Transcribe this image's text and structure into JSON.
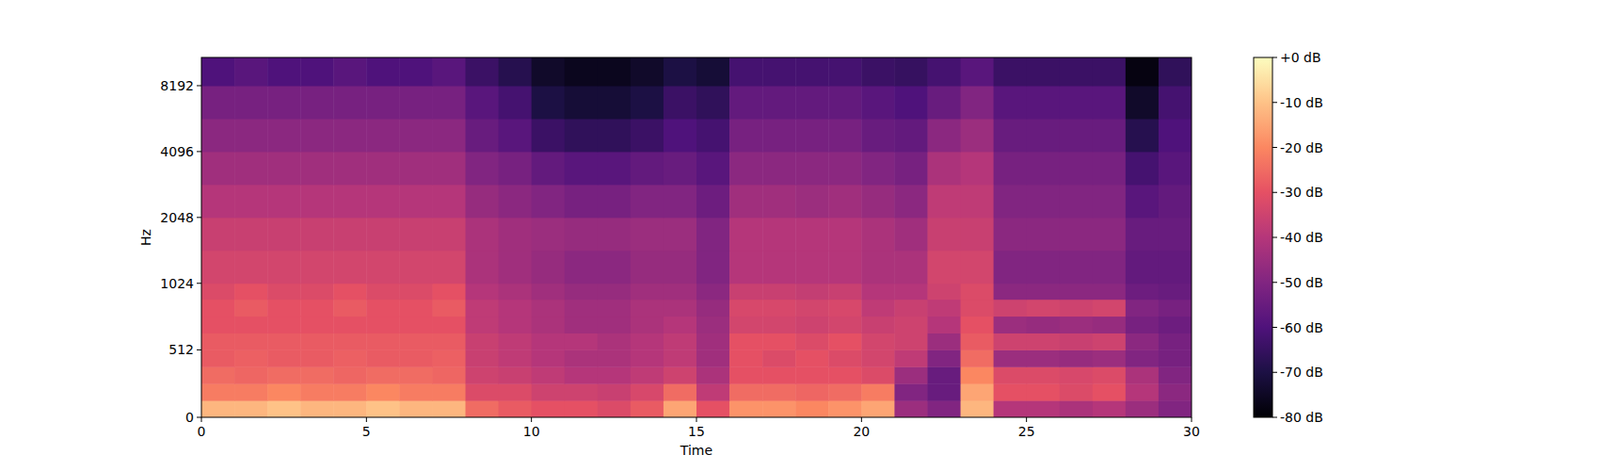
{
  "chart_data": {
    "type": "heatmap",
    "x_label": "Time",
    "y_label": "Hz",
    "xlim": [
      0,
      30
    ],
    "xticks": [
      0,
      5,
      10,
      15,
      20,
      25,
      30
    ],
    "ylim": [
      0,
      11025
    ],
    "yticks": [
      0,
      512,
      1024,
      2048,
      4096,
      8192
    ],
    "log": "y",
    "x_edges": [
      0,
      1,
      2,
      3,
      4,
      5,
      6,
      7,
      8,
      9,
      10,
      11,
      12,
      13,
      14,
      15,
      16,
      17,
      18,
      19,
      20,
      21,
      22,
      23,
      24,
      25,
      26,
      27,
      28,
      29,
      30
    ],
    "y_edges": [
      0,
      128,
      256,
      384,
      512,
      640,
      768,
      896,
      1024,
      1448,
      2048,
      2896,
      4096,
      5793,
      8192,
      11025
    ],
    "values": [
      [
        -12,
        -12,
        -10,
        -12,
        -12,
        -10,
        -12,
        -12,
        -25,
        -28,
        -30,
        -30,
        -32,
        -28,
        -15,
        -30,
        -18,
        -18,
        -20,
        -18,
        -15,
        -45,
        -50,
        -12,
        -40,
        -40,
        -42,
        -40,
        -45,
        -50
      ],
      [
        -22,
        -22,
        -20,
        -22,
        -22,
        -20,
        -22,
        -22,
        -32,
        -32,
        -35,
        -35,
        -36,
        -33,
        -25,
        -38,
        -25,
        -25,
        -26,
        -25,
        -22,
        -50,
        -55,
        -15,
        -30,
        -30,
        -32,
        -30,
        -40,
        -48
      ],
      [
        -25,
        -26,
        -25,
        -25,
        -26,
        -25,
        -25,
        -26,
        -35,
        -36,
        -38,
        -40,
        -40,
        -38,
        -35,
        -42,
        -30,
        -30,
        -30,
        -30,
        -32,
        -45,
        -55,
        -20,
        -32,
        -32,
        -33,
        -32,
        -42,
        -50
      ],
      [
        -28,
        -27,
        -28,
        -28,
        -27,
        -28,
        -28,
        -27,
        -36,
        -38,
        -40,
        -42,
        -42,
        -40,
        -38,
        -44,
        -30,
        -32,
        -30,
        -32,
        -34,
        -38,
        -50,
        -25,
        -45,
        -45,
        -46,
        -45,
        -50,
        -52
      ],
      [
        -28,
        -28,
        -28,
        -28,
        -28,
        -28,
        -28,
        -28,
        -36,
        -38,
        -40,
        -40,
        -42,
        -40,
        -38,
        -44,
        -30,
        -30,
        -32,
        -30,
        -34,
        -35,
        -45,
        -28,
        -35,
        -35,
        -36,
        -35,
        -48,
        -52
      ],
      [
        -30,
        -30,
        -30,
        -30,
        -30,
        -30,
        -30,
        -30,
        -38,
        -40,
        -42,
        -44,
        -44,
        -42,
        -40,
        -45,
        -34,
        -34,
        -35,
        -34,
        -36,
        -35,
        -40,
        -30,
        -45,
        -46,
        -45,
        -46,
        -52,
        -54
      ],
      [
        -30,
        -28,
        -30,
        -30,
        -28,
        -30,
        -30,
        -28,
        -38,
        -40,
        -42,
        -44,
        -44,
        -42,
        -42,
        -46,
        -33,
        -33,
        -34,
        -33,
        -38,
        -36,
        -38,
        -32,
        -35,
        -34,
        -35,
        -34,
        -50,
        -52
      ],
      [
        -32,
        -30,
        -32,
        -32,
        -30,
        -32,
        -32,
        -30,
        -40,
        -42,
        -44,
        -46,
        -46,
        -44,
        -44,
        -48,
        -36,
        -36,
        -37,
        -36,
        -40,
        -40,
        -35,
        -32,
        -48,
        -48,
        -48,
        -48,
        -54,
        -55
      ],
      [
        -34,
        -34,
        -34,
        -34,
        -34,
        -34,
        -34,
        -34,
        -42,
        -44,
        -46,
        -48,
        -48,
        -46,
        -46,
        -50,
        -40,
        -40,
        -40,
        -40,
        -42,
        -42,
        -34,
        -34,
        -50,
        -50,
        -50,
        -50,
        -56,
        -56
      ],
      [
        -36,
        -36,
        -36,
        -36,
        -36,
        -36,
        -36,
        -36,
        -42,
        -44,
        -45,
        -46,
        -46,
        -45,
        -45,
        -50,
        -40,
        -40,
        -40,
        -40,
        -42,
        -44,
        -36,
        -36,
        -48,
        -48,
        -48,
        -48,
        -55,
        -55
      ],
      [
        -40,
        -40,
        -40,
        -40,
        -40,
        -40,
        -40,
        -40,
        -46,
        -48,
        -50,
        -52,
        -52,
        -50,
        -50,
        -54,
        -44,
        -44,
        -45,
        -44,
        -46,
        -48,
        -38,
        -38,
        -50,
        -50,
        -50,
        -50,
        -58,
        -56
      ],
      [
        -44,
        -44,
        -44,
        -44,
        -44,
        -44,
        -44,
        -44,
        -50,
        -52,
        -56,
        -58,
        -58,
        -56,
        -55,
        -58,
        -48,
        -48,
        -48,
        -48,
        -50,
        -52,
        -42,
        -40,
        -52,
        -52,
        -52,
        -52,
        -62,
        -58
      ],
      [
        -48,
        -48,
        -48,
        -48,
        -48,
        -48,
        -48,
        -48,
        -55,
        -58,
        -64,
        -66,
        -66,
        -64,
        -60,
        -62,
        -52,
        -52,
        -52,
        -52,
        -55,
        -56,
        -48,
        -45,
        -55,
        -55,
        -55,
        -55,
        -68,
        -60
      ],
      [
        -52,
        -52,
        -52,
        -52,
        -52,
        -52,
        -52,
        -52,
        -58,
        -62,
        -70,
        -72,
        -72,
        -70,
        -64,
        -66,
        -56,
        -56,
        -56,
        -56,
        -58,
        -60,
        -55,
        -50,
        -58,
        -58,
        -58,
        -58,
        -74,
        -62
      ],
      [
        -60,
        -58,
        -60,
        -60,
        -58,
        -60,
        -60,
        -58,
        -64,
        -68,
        -74,
        -76,
        -76,
        -74,
        -70,
        -72,
        -62,
        -62,
        -62,
        -62,
        -64,
        -65,
        -62,
        -58,
        -64,
        -64,
        -64,
        -64,
        -78,
        -66
      ]
    ],
    "colorbar_range": [
      -80,
      0
    ],
    "colorbar_ticks": [
      {
        "value": 0,
        "label": "+0 dB"
      },
      {
        "value": -10,
        "label": "-10 dB"
      },
      {
        "value": -20,
        "label": "-20 dB"
      },
      {
        "value": -30,
        "label": "-30 dB"
      },
      {
        "value": -40,
        "label": "-40 dB"
      },
      {
        "value": -50,
        "label": "-50 dB"
      },
      {
        "value": -60,
        "label": "-60 dB"
      },
      {
        "value": -70,
        "label": "-70 dB"
      },
      {
        "value": -80,
        "label": "-80 dB"
      }
    ]
  }
}
